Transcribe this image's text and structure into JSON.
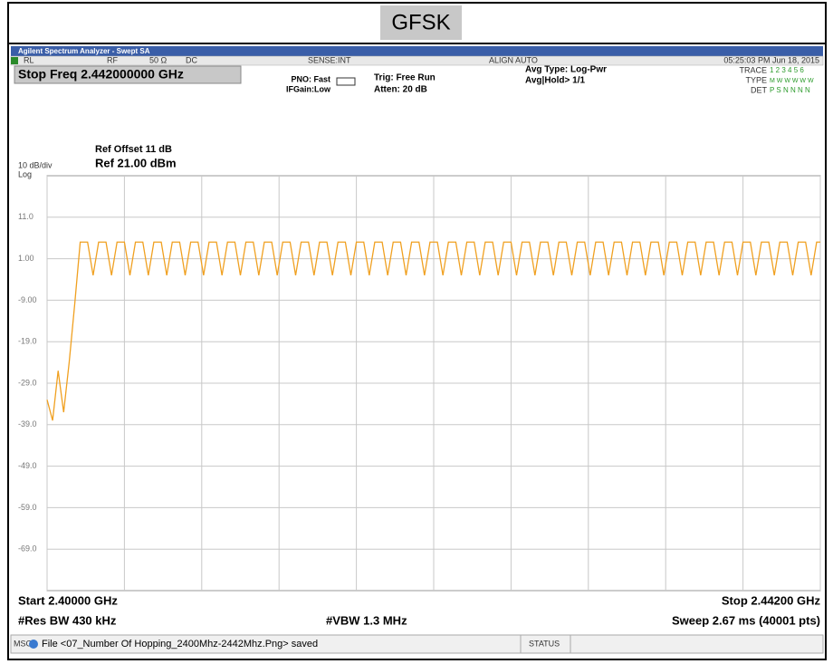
{
  "header": {
    "title": "GFSK"
  },
  "window": {
    "app_title": "Agilent Spectrum Analyzer - Swept SA"
  },
  "status_row": {
    "rl": "RL",
    "rf": "RF",
    "impedance": "50 Ω",
    "coupling": "DC",
    "sense": "SENSE:INT",
    "align": "ALIGN AUTO",
    "timestamp": "05:25:03 PM Jun 18, 2015"
  },
  "active_function": "Stop Freq 2.442000000 GHz",
  "settings": {
    "pno": "PNO: Fast",
    "ifgain": "IFGain:Low",
    "trig": "Trig: Free Run",
    "atten": "Atten: 20 dB",
    "avg_type": "Avg Type: Log-Pwr",
    "avg_hold": "Avg|Hold> 1/1"
  },
  "trace_panel": {
    "trace_label": "TRACE",
    "trace_value": "1 2 3 4 5 6",
    "type_label": "TYPE",
    "type_value": "M W W W W W",
    "det_label": "DET",
    "det_value": "P S N N N N"
  },
  "reference": {
    "offset": "Ref Offset 11 dB",
    "scale": "10 dB/div",
    "scale_type": "Log",
    "level": "Ref 21.00 dBm"
  },
  "footer": {
    "start": "Start 2.40000 GHz",
    "stop": "Stop 2.44200 GHz",
    "rbw": "#Res BW 430 kHz",
    "vbw": "#VBW 1.3 MHz",
    "sweep": "Sweep  2.67 ms (40001 pts)"
  },
  "message_bar": {
    "msg_label": "MSG",
    "message": "File <07_Number Of Hopping_2400Mhz-2442Mhz.Png> saved",
    "status_label": "STATUS"
  },
  "chart_data": {
    "type": "line",
    "color": "#f0a020",
    "grid": true,
    "xlim": [
      2.4,
      2.442
    ],
    "ylim": [
      -79,
      21
    ],
    "xticks": [
      2.4,
      2.4042,
      2.4084,
      2.4126,
      2.4168,
      2.421,
      2.4252,
      2.4294,
      2.4336,
      2.4378,
      2.442
    ],
    "yticks": [
      {
        "value": 11,
        "label": "11.0"
      },
      {
        "value": 1,
        "label": "1.00"
      },
      {
        "value": -9,
        "label": "-9.00"
      },
      {
        "value": -19,
        "label": "-19.0"
      },
      {
        "value": -29,
        "label": "-29.0"
      },
      {
        "value": -39,
        "label": "-39.0"
      },
      {
        "value": -49,
        "label": "-49.0"
      },
      {
        "value": -59,
        "label": "-59.0"
      },
      {
        "value": -69,
        "label": "-69.0"
      }
    ],
    "x": [
      2.4,
      2.4003,
      2.4006,
      2.4009,
      2.4012,
      2.4015,
      2.4018,
      2.4022,
      2.4025,
      2.4028,
      2.4032,
      2.4035,
      2.4038,
      2.4042,
      2.4045,
      2.4048,
      2.4052,
      2.4055,
      2.4058,
      2.4062,
      2.4065,
      2.4068,
      2.4072,
      2.4075,
      2.4078,
      2.4082,
      2.4085,
      2.4088,
      2.4092,
      2.4095,
      2.4098,
      2.4102,
      2.4105,
      2.4108,
      2.4112,
      2.4115,
      2.4118,
      2.4122,
      2.4125,
      2.4128,
      2.4132,
      2.4135,
      2.4138,
      2.4142,
      2.4145,
      2.4148,
      2.4152,
      2.4155,
      2.4158,
      2.4162,
      2.4165,
      2.4168,
      2.4172,
      2.4175,
      2.4178,
      2.4182,
      2.4185,
      2.4188,
      2.4192,
      2.4195,
      2.4198,
      2.4202,
      2.4205,
      2.4208,
      2.4212,
      2.4215,
      2.4218,
      2.4222,
      2.4225,
      2.4228,
      2.4232,
      2.4235,
      2.4238,
      2.4242,
      2.4245,
      2.4248,
      2.4252,
      2.4255,
      2.4258,
      2.4262,
      2.4265,
      2.4268,
      2.4272,
      2.4275,
      2.4278,
      2.4282,
      2.4285,
      2.4288,
      2.4292,
      2.4295,
      2.4298,
      2.4302,
      2.4305,
      2.4308,
      2.4312,
      2.4315,
      2.4318,
      2.4322,
      2.4325,
      2.4328,
      2.4332,
      2.4335,
      2.4338,
      2.4342,
      2.4345,
      2.4348,
      2.4352,
      2.4355,
      2.4358,
      2.4362,
      2.4365,
      2.4368,
      2.4372,
      2.4375,
      2.4378,
      2.4382,
      2.4385,
      2.4388,
      2.4392,
      2.4395,
      2.4398,
      2.4402,
      2.4405,
      2.4408,
      2.4412,
      2.4415,
      2.4418,
      2.442
    ],
    "values": [
      -33,
      -38,
      -26,
      -36,
      -24,
      -10,
      5,
      5,
      -3,
      5,
      5,
      -3,
      5,
      5,
      -3,
      5,
      5,
      -3,
      5,
      5,
      -3,
      5,
      5,
      -3,
      5,
      5,
      -3,
      5,
      5,
      -3,
      5,
      5,
      -3,
      5,
      5,
      -3,
      5,
      5,
      -3,
      5,
      5,
      -3,
      5,
      5,
      -3,
      5,
      5,
      -3,
      5,
      5,
      -3,
      5,
      5,
      -3,
      5,
      5,
      -3,
      5,
      5,
      -3,
      5,
      5,
      -3,
      5,
      5,
      -3,
      5,
      5,
      -3,
      5,
      5,
      -3,
      5,
      5,
      -3,
      5,
      5,
      -3,
      5,
      5,
      -3,
      5,
      5,
      -3,
      5,
      5,
      -3,
      5,
      5,
      -3,
      5,
      5,
      -3,
      5,
      5,
      -3,
      5,
      5,
      -3,
      5,
      5,
      -3,
      5,
      5,
      -3,
      5,
      5,
      -3,
      5,
      5,
      -3,
      5,
      5,
      -3,
      5,
      5,
      -3,
      5,
      5,
      -3,
      5,
      5,
      -3,
      5,
      5,
      -3,
      5,
      5
    ]
  }
}
